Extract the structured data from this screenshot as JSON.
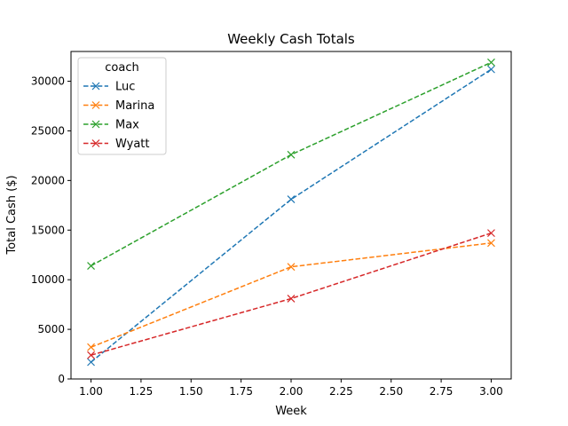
{
  "chart_data": {
    "type": "line",
    "title": "Weekly Cash Totals",
    "xlabel": "Week",
    "ylabel": "Total Cash ($)",
    "xlim": [
      0.9,
      3.1
    ],
    "ylim": [
      0,
      33000
    ],
    "x_ticks": [
      1.0,
      1.25,
      1.5,
      1.75,
      2.0,
      2.25,
      2.5,
      2.75,
      3.0
    ],
    "x_tick_labels": [
      "1.00",
      "1.25",
      "1.50",
      "1.75",
      "2.00",
      "2.25",
      "2.50",
      "2.75",
      "3.00"
    ],
    "y_ticks": [
      0,
      5000,
      10000,
      15000,
      20000,
      25000,
      30000
    ],
    "y_tick_labels": [
      "0",
      "5000",
      "10000",
      "15000",
      "20000",
      "25000",
      "30000"
    ],
    "grid": false,
    "legend": {
      "title": "coach",
      "position": "top-left"
    },
    "line_style": "dashed",
    "marker": "x",
    "x": [
      1,
      2,
      3
    ],
    "series": [
      {
        "name": "Luc",
        "color": "#1f77b4",
        "values": [
          1700,
          18100,
          31200
        ]
      },
      {
        "name": "Marina",
        "color": "#ff7f0e",
        "values": [
          3200,
          11300,
          13700
        ]
      },
      {
        "name": "Max",
        "color": "#2ca02c",
        "values": [
          11400,
          22600,
          31900
        ]
      },
      {
        "name": "Wyatt",
        "color": "#d62728",
        "values": [
          2400,
          8100,
          14700
        ]
      }
    ]
  }
}
